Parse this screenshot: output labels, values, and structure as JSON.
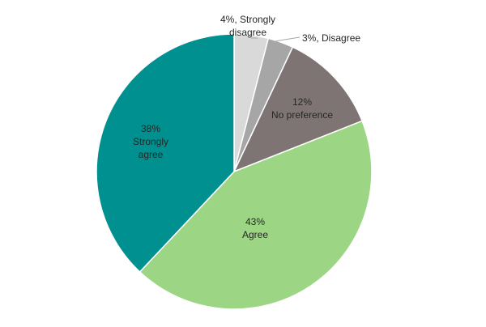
{
  "chart_data": {
    "type": "pie",
    "title": "",
    "start": "top",
    "direction": "clockwise",
    "legend": "none",
    "series": [
      {
        "label_lines": [
          "4%, Strongly",
          "disagree"
        ],
        "value": 4,
        "color": "#d9d9d9"
      },
      {
        "label_lines": [
          "3%, Disagree"
        ],
        "value": 3,
        "color": "#a6a6a6"
      },
      {
        "label_lines": [
          "12%",
          "No preference"
        ],
        "value": 12,
        "color": "#7f7474"
      },
      {
        "label_lines": [
          "43%",
          "Agree"
        ],
        "value": 43,
        "color": "#9cd685"
      },
      {
        "label_lines": [
          "38%",
          "Strongly",
          "agree"
        ],
        "value": 38,
        "color": "#009090"
      }
    ]
  }
}
